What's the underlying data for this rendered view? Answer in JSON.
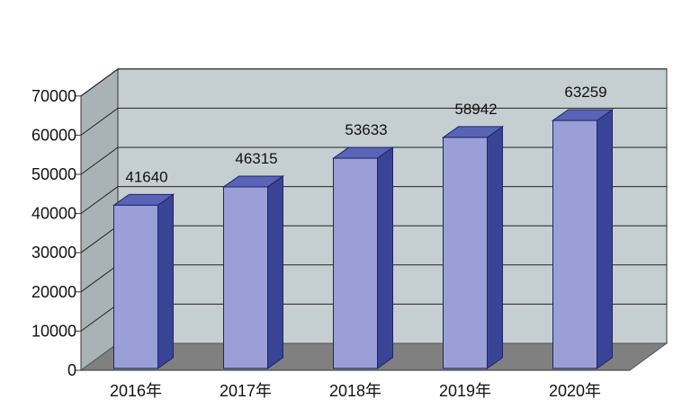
{
  "chart_data": {
    "type": "bar",
    "title": "",
    "xlabel": "",
    "ylabel": "",
    "categories": [
      "2016年",
      "2017年",
      "2018年",
      "2019年",
      "2020年"
    ],
    "values": [
      41640,
      46315,
      53633,
      58942,
      63259
    ],
    "data_labels": [
      "41640",
      "46315",
      "53633",
      "58942",
      "63259"
    ],
    "ylim": [
      0,
      70000
    ],
    "yticks": [
      "0",
      "10000",
      "20000",
      "30000",
      "40000",
      "50000",
      "60000",
      "70000"
    ],
    "grid": true,
    "style": "3d-column",
    "colors": {
      "bar_front": "#9b9fd8",
      "bar_side": "#3a4496",
      "bar_top": "#5a63b8",
      "back_wall": "#c5cfd1",
      "side_wall": "#a9b3b6",
      "floor": "#808080",
      "grid": "#222222"
    }
  }
}
